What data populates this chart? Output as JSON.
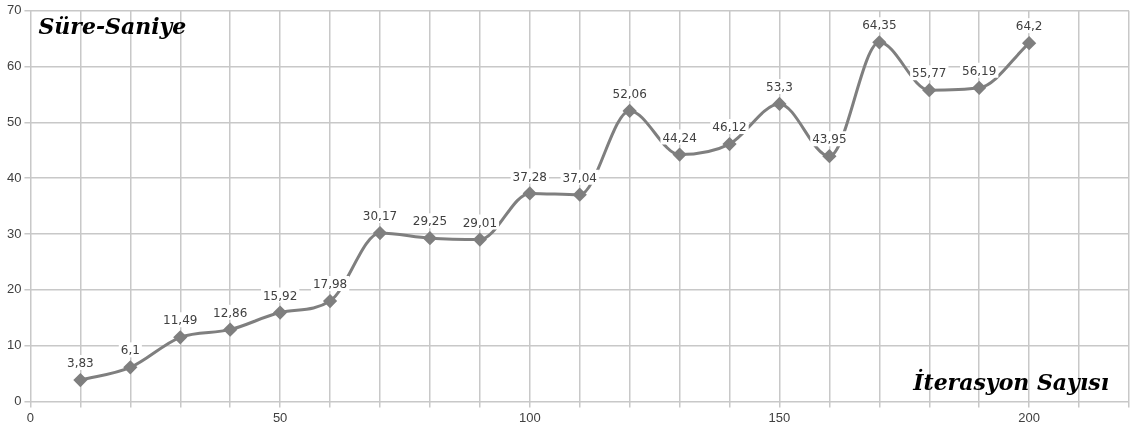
{
  "chart_data": {
    "type": "line",
    "xlabel": "İterasyon Sayısı",
    "ylabel": "Süre-Saniye",
    "x": [
      10,
      20,
      30,
      40,
      50,
      60,
      70,
      80,
      90,
      100,
      110,
      120,
      130,
      140,
      150,
      160,
      170,
      180,
      190,
      200
    ],
    "series": [
      {
        "color": "#7f7f7f",
        "values": [
          3.83,
          6.1,
          11.49,
          12.86,
          15.92,
          17.98,
          30.17,
          29.25,
          29.01,
          37.28,
          37.04,
          52.06,
          44.24,
          46.12,
          53.3,
          43.95,
          64.35,
          55.77,
          56.19,
          64.2
        ],
        "value_labels": [
          "3,83",
          "6,1",
          "11,49",
          "12,86",
          "15,92",
          "17,98",
          "30,17",
          "29,25",
          "29,01",
          "37,28",
          "37,04",
          "52,06",
          "44,24",
          "46,12",
          "53,3",
          "43,95",
          "64,35",
          "55,77",
          "56,19",
          "64,2"
        ]
      }
    ],
    "xlim": [
      0,
      220
    ],
    "xticks": [
      0,
      {
        "value": 10,
        "label": null
      },
      {
        "value": 20,
        "label": null
      },
      {
        "value": 30,
        "label": null
      },
      {
        "value": 40,
        "label": null
      },
      50,
      {
        "value": 60,
        "label": null
      },
      {
        "value": 70,
        "label": null
      },
      {
        "value": 80,
        "label": null
      },
      {
        "value": 90,
        "label": null
      },
      100,
      {
        "value": 110,
        "label": null
      },
      {
        "value": 120,
        "label": null
      },
      {
        "value": 130,
        "label": null
      },
      {
        "value": 140,
        "label": null
      },
      150,
      {
        "value": 160,
        "label": null
      },
      {
        "value": 170,
        "label": null
      },
      {
        "value": 180,
        "label": null
      },
      {
        "value": 190,
        "label": null
      },
      200,
      {
        "value": 210,
        "label": null
      },
      {
        "value": 220,
        "label": null
      }
    ],
    "ylim": [
      0,
      70
    ],
    "yticks": [
      0,
      10,
      20,
      30,
      40,
      50,
      60,
      70
    ],
    "grid": true,
    "legend": false,
    "marker": "diamond",
    "line_style": "solid"
  }
}
